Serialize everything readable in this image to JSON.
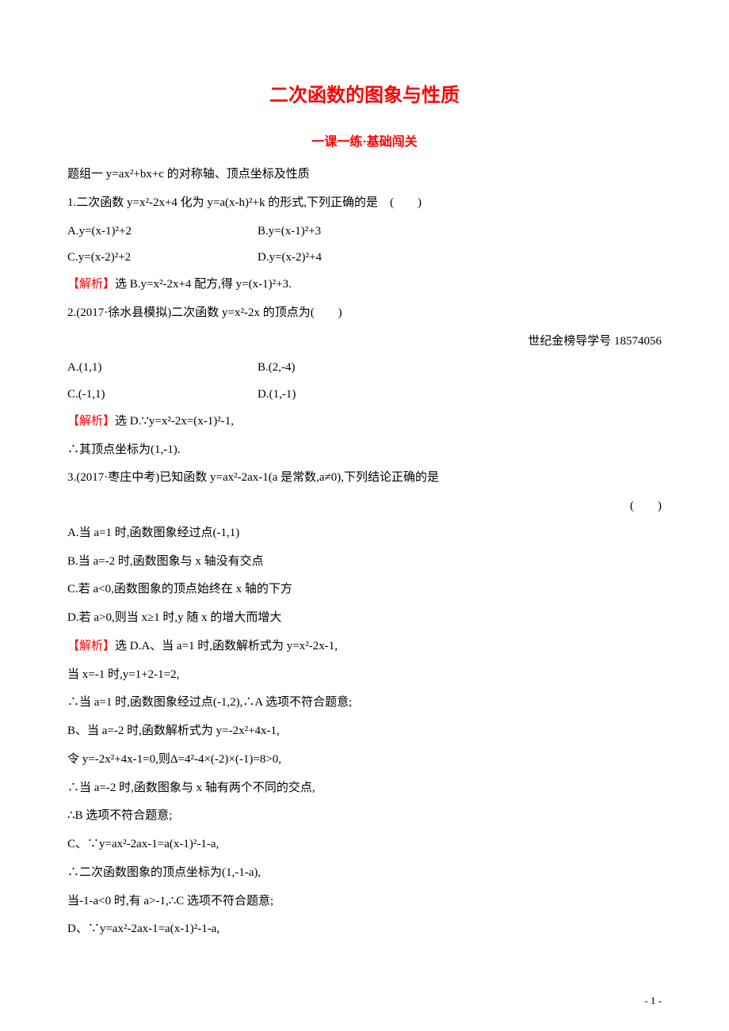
{
  "title": "二次函数的图象与性质",
  "subtitle": "一课一练·基础闯关",
  "section_header": "题组一 y=ax²+bx+c 的对称轴、顶点坐标及性质",
  "q1": {
    "stem": "1.二次函数 y=x²-2x+4 化为 y=a(x-h)²+k 的形式,下列正确的是　(　　)",
    "optA": "A.y=(x-1)²+2",
    "optB": "B.y=(x-1)²+3",
    "optC": "C.y=(x-2)²+2",
    "optD": "D.y=(x-2)²+4",
    "analysis_label": "【解析】",
    "analysis_body": "选 B.y=x²-2x+4 配方,得 y=(x-1)²+3."
  },
  "q2": {
    "stem": "2.(2017·徐水县模拟)二次函数 y=x²-2x 的顶点为(　　)",
    "note": "世纪金榜导学号 18574056",
    "optA": "A.(1,1)",
    "optB": "B.(2,-4)",
    "optC": "C.(-1,1)",
    "optD": "D.(1,-1)",
    "analysis_label": "【解析】",
    "analysis_body": "选 D.∵y=x²-2x=(x-1)²-1,",
    "analysis_line2": "∴其顶点坐标为(1,-1)."
  },
  "q3": {
    "stem": "3.(2017·枣庄中考)已知函数 y=ax²-2ax-1(a 是常数,a≠0),下列结论正确的是",
    "paren": "(　　)",
    "optA": "A.当 a=1 时,函数图象经过点(-1,1)",
    "optB": "B.当 a=-2 时,函数图象与 x 轴没有交点",
    "optC": "C.若 a<0,函数图象的顶点始终在 x 轴的下方",
    "optD": "D.若 a>0,则当 x≥1 时,y 随 x 的增大而增大",
    "analysis_label": "【解析】",
    "analysis_body": "选 D.A、当 a=1 时,函数解析式为 y=x²-2x-1,",
    "line2": "当 x=-1 时,y=1+2-1=2,",
    "line3": "∴当 a=1 时,函数图象经过点(-1,2),∴A 选项不符合题意;",
    "line4": "B、当 a=-2 时,函数解析式为 y=-2x²+4x-1,",
    "line5": "令 y=-2x²+4x-1=0,则Δ=4²-4×(-2)×(-1)=8>0,",
    "line6": "∴当 a=-2 时,函数图象与 x 轴有两个不同的交点,",
    "line7": "∴B 选项不符合题意;",
    "line8": "C、∵y=ax²-2ax-1=a(x-1)²-1-a,",
    "line9": "∴二次函数图象的顶点坐标为(1,-1-a),",
    "line10": "当-1-a<0 时,有 a>-1,∴C 选项不符合题意;",
    "line11": "D、∵y=ax²-2ax-1=a(x-1)²-1-a,"
  },
  "page_number": "- 1 -"
}
